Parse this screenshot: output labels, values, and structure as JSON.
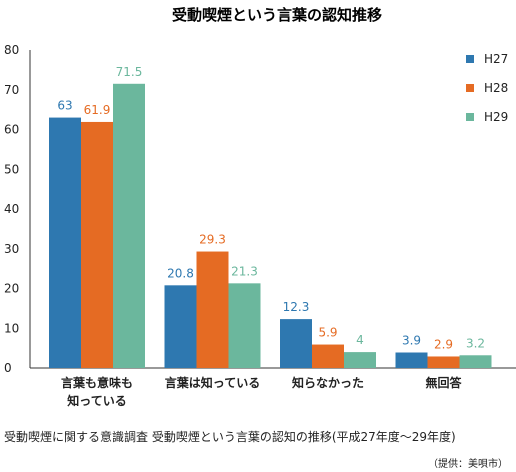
{
  "chart_data": {
    "type": "bar",
    "title": "受動喫煙という言葉の認知推移",
    "categories": [
      "言葉も意味も\n知っている",
      "言葉は知っている",
      "知らなかった",
      "無回答"
    ],
    "series": [
      {
        "name": "H27",
        "color": "#2e78b0",
        "values": [
          63,
          20.8,
          12.3,
          3.9
        ]
      },
      {
        "name": "H28",
        "color": "#e56b23",
        "values": [
          61.9,
          29.3,
          5.9,
          2.9
        ]
      },
      {
        "name": "H29",
        "color": "#6bb79d",
        "values": [
          71.5,
          21.3,
          4,
          3.2
        ]
      }
    ],
    "ylim": [
      0,
      80
    ],
    "yticks": [
      0,
      10,
      20,
      30,
      40,
      50,
      60,
      70,
      80
    ],
    "grid": false,
    "legend": "top-right"
  },
  "caption": "受動喫煙に関する意識調査 受動喫煙という言葉の認知の推移(平成27年度〜29年度)",
  "source": "（提供：美唄市）"
}
